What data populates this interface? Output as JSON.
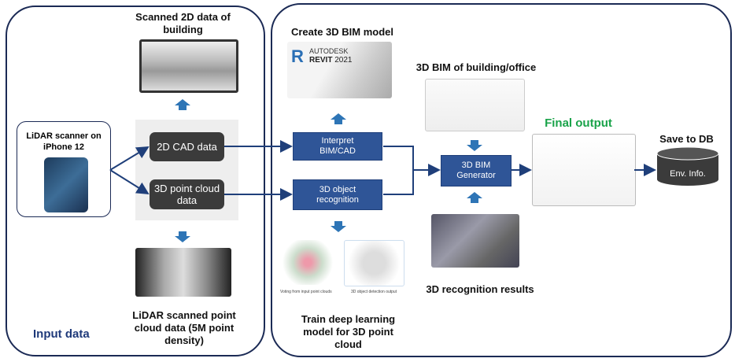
{
  "input_panel": {
    "title": "Input data",
    "device": {
      "label": "LiDAR scanner on iPhone 12"
    },
    "nodes": {
      "cad": "2D CAD data",
      "point_cloud": "3D point cloud data"
    },
    "scanned_2d_label": "Scanned 2D data of building",
    "scanned_pc_label": "LiDAR scanned point cloud data (5M point density)"
  },
  "process_panel": {
    "create_bim_label": "Create 3D BIM model",
    "revit": {
      "brand": "AUTODESK",
      "product": "REVIT",
      "version": "2021"
    },
    "nodes": {
      "interpret": "Interpret BIM/CAD",
      "recognition": "3D object recognition",
      "generator": "3D BIM Generator"
    },
    "train_label": "Train deep learning model for 3D point cloud",
    "train_captions": [
      "Voting from input point clouds",
      "3D object detection output"
    ],
    "bim_building_label": "3D BIM of building/office",
    "recognition_results_label": "3D recognition results",
    "final_output_label": "Final output",
    "save_label": "Save to DB",
    "db_label": "Env. Info."
  },
  "colors": {
    "panel_border": "#1b2a55",
    "node_blue": "#2f5597",
    "node_dark": "#3b3b3b",
    "final_output": "#1aa34a",
    "arrow": "#1f3f7a",
    "title": "#1f3a7a"
  }
}
